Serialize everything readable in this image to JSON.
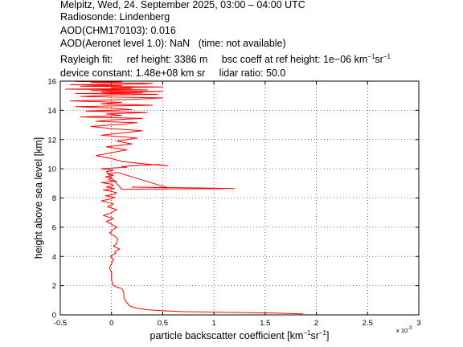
{
  "header": {
    "line1": "Melpitz, Wed, 24. September 2025, 03:00 – 04:00 UTC",
    "line2": "Radiosonde: Lindenberg",
    "line3": "AOD(CHM170103): 0.016",
    "line4": "AOD(Aeronet level 1.0): NaN   (time: not available)",
    "rayleigh_prefix": "Rayleigh fit:     ref height: 3386 m     bsc coeff at ref height: 1e−06 km",
    "line6": "device constant: 1.48e+08 km sr     lidar ratio: 50.0"
  },
  "unit_parts": {
    "km_exp": "−1",
    "sr": "sr",
    "sr_exp": "−1"
  },
  "chart_data": {
    "type": "line",
    "xlabel_prefix": "particle backscatter coefficient [km",
    "xlabel_mid": "sr",
    "xlabel_suffix": "]",
    "ylabel": "height above sea level [km]",
    "x_exponent_label": "x 10",
    "x_exponent_power": "-3",
    "xlim": [
      -0.5,
      3
    ],
    "ylim": [
      0,
      16
    ],
    "xticks": [
      "-0.5",
      "0",
      "0.5",
      "1",
      "1.5",
      "2",
      "2.5",
      "3"
    ],
    "yticks": [
      "0",
      "2",
      "4",
      "6",
      "8",
      "10",
      "12",
      "14",
      "16"
    ],
    "grid": true,
    "series": [
      {
        "color": "#ff0000",
        "x": [
          1.87,
          1.6,
          1.05,
          0.7,
          0.5,
          0.35,
          0.25,
          0.18,
          0.14,
          0.12,
          0.12,
          0.11,
          0.1,
          0.05,
          0.02,
          0.0,
          0.0,
          -0.02,
          0.0,
          0.02,
          -0.01,
          0.01,
          0.04,
          0.03,
          0.08,
          0.02,
          0.05,
          0.06,
          0.03,
          -0.02,
          0.01,
          0.05,
          0.0,
          -0.05,
          0.02,
          -0.08,
          0.0,
          0.05,
          -0.04,
          0.02,
          -0.1,
          0.0,
          0.03,
          -0.06,
          0.02,
          0.05,
          0.0,
          -0.08,
          0.03,
          -0.05,
          0.02,
          0.0,
          -0.1,
          0.05,
          -0.03,
          0.0,
          -0.06,
          0.02,
          -0.04,
          0.06,
          0.55,
          0.2,
          1.2,
          0.1,
          -0.05,
          0.02,
          -0.1,
          0.0,
          0.15,
          0.1,
          0.2,
          0.3,
          0.45,
          0.55,
          0.3,
          0.1,
          0.0,
          -0.15,
          0.0,
          0.15,
          -0.05,
          0.2,
          0.05,
          0.25,
          -0.1,
          0.1,
          0.3,
          0.0,
          -0.2,
          0.1,
          0.25,
          -0.15,
          0.0,
          0.3,
          -0.3,
          0.1,
          -0.05,
          0.35,
          -0.25,
          0.2,
          0.0,
          -0.35,
          0.4,
          -0.1,
          0.1,
          -0.4,
          0.2,
          0.5,
          -0.3,
          0.0,
          0.45,
          -0.35,
          0.3,
          -0.1,
          0.5,
          -0.2,
          0.35,
          -0.45,
          0.2,
          0.0,
          0.5,
          -0.3,
          0.1,
          -0.4,
          0.3,
          0.4,
          -0.2,
          0.1,
          -0.35,
          0.0
        ],
        "y": [
          0.07,
          0.12,
          0.18,
          0.22,
          0.28,
          0.35,
          0.45,
          0.6,
          0.9,
          1.2,
          1.5,
          1.7,
          1.8,
          1.9,
          2.0,
          2.4,
          2.9,
          3.2,
          3.5,
          3.8,
          4.0,
          4.1,
          4.2,
          4.3,
          4.5,
          4.7,
          4.9,
          5.2,
          5.4,
          5.6,
          5.8,
          6.0,
          6.2,
          6.4,
          6.6,
          6.8,
          7.0,
          7.2,
          7.4,
          7.6,
          7.8,
          7.95,
          8.05,
          8.15,
          8.25,
          8.35,
          8.45,
          8.55,
          8.65,
          8.75,
          8.85,
          8.95,
          9.05,
          9.15,
          9.25,
          9.35,
          9.45,
          9.55,
          9.65,
          9.75,
          8.7,
          8.75,
          8.65,
          8.6,
          9.8,
          9.9,
          10.0,
          10.05,
          10.1,
          10.15,
          10.2,
          10.25,
          10.3,
          10.2,
          10.35,
          10.5,
          10.7,
          10.9,
          11.1,
          11.3,
          11.5,
          11.7,
          11.9,
          12.1,
          12.3,
          12.45,
          12.6,
          12.75,
          12.9,
          13.05,
          13.15,
          13.25,
          13.35,
          13.45,
          13.55,
          13.65,
          13.75,
          13.85,
          13.95,
          14.05,
          14.15,
          14.25,
          14.35,
          14.45,
          14.55,
          14.65,
          14.75,
          14.85,
          14.95,
          15.05,
          15.1,
          15.15,
          15.2,
          15.25,
          15.3,
          15.35,
          15.4,
          15.45,
          15.5,
          15.55,
          15.6,
          15.65,
          15.7,
          15.75,
          15.8,
          15.85,
          15.9,
          15.95,
          15.98,
          16.0
        ]
      }
    ]
  }
}
